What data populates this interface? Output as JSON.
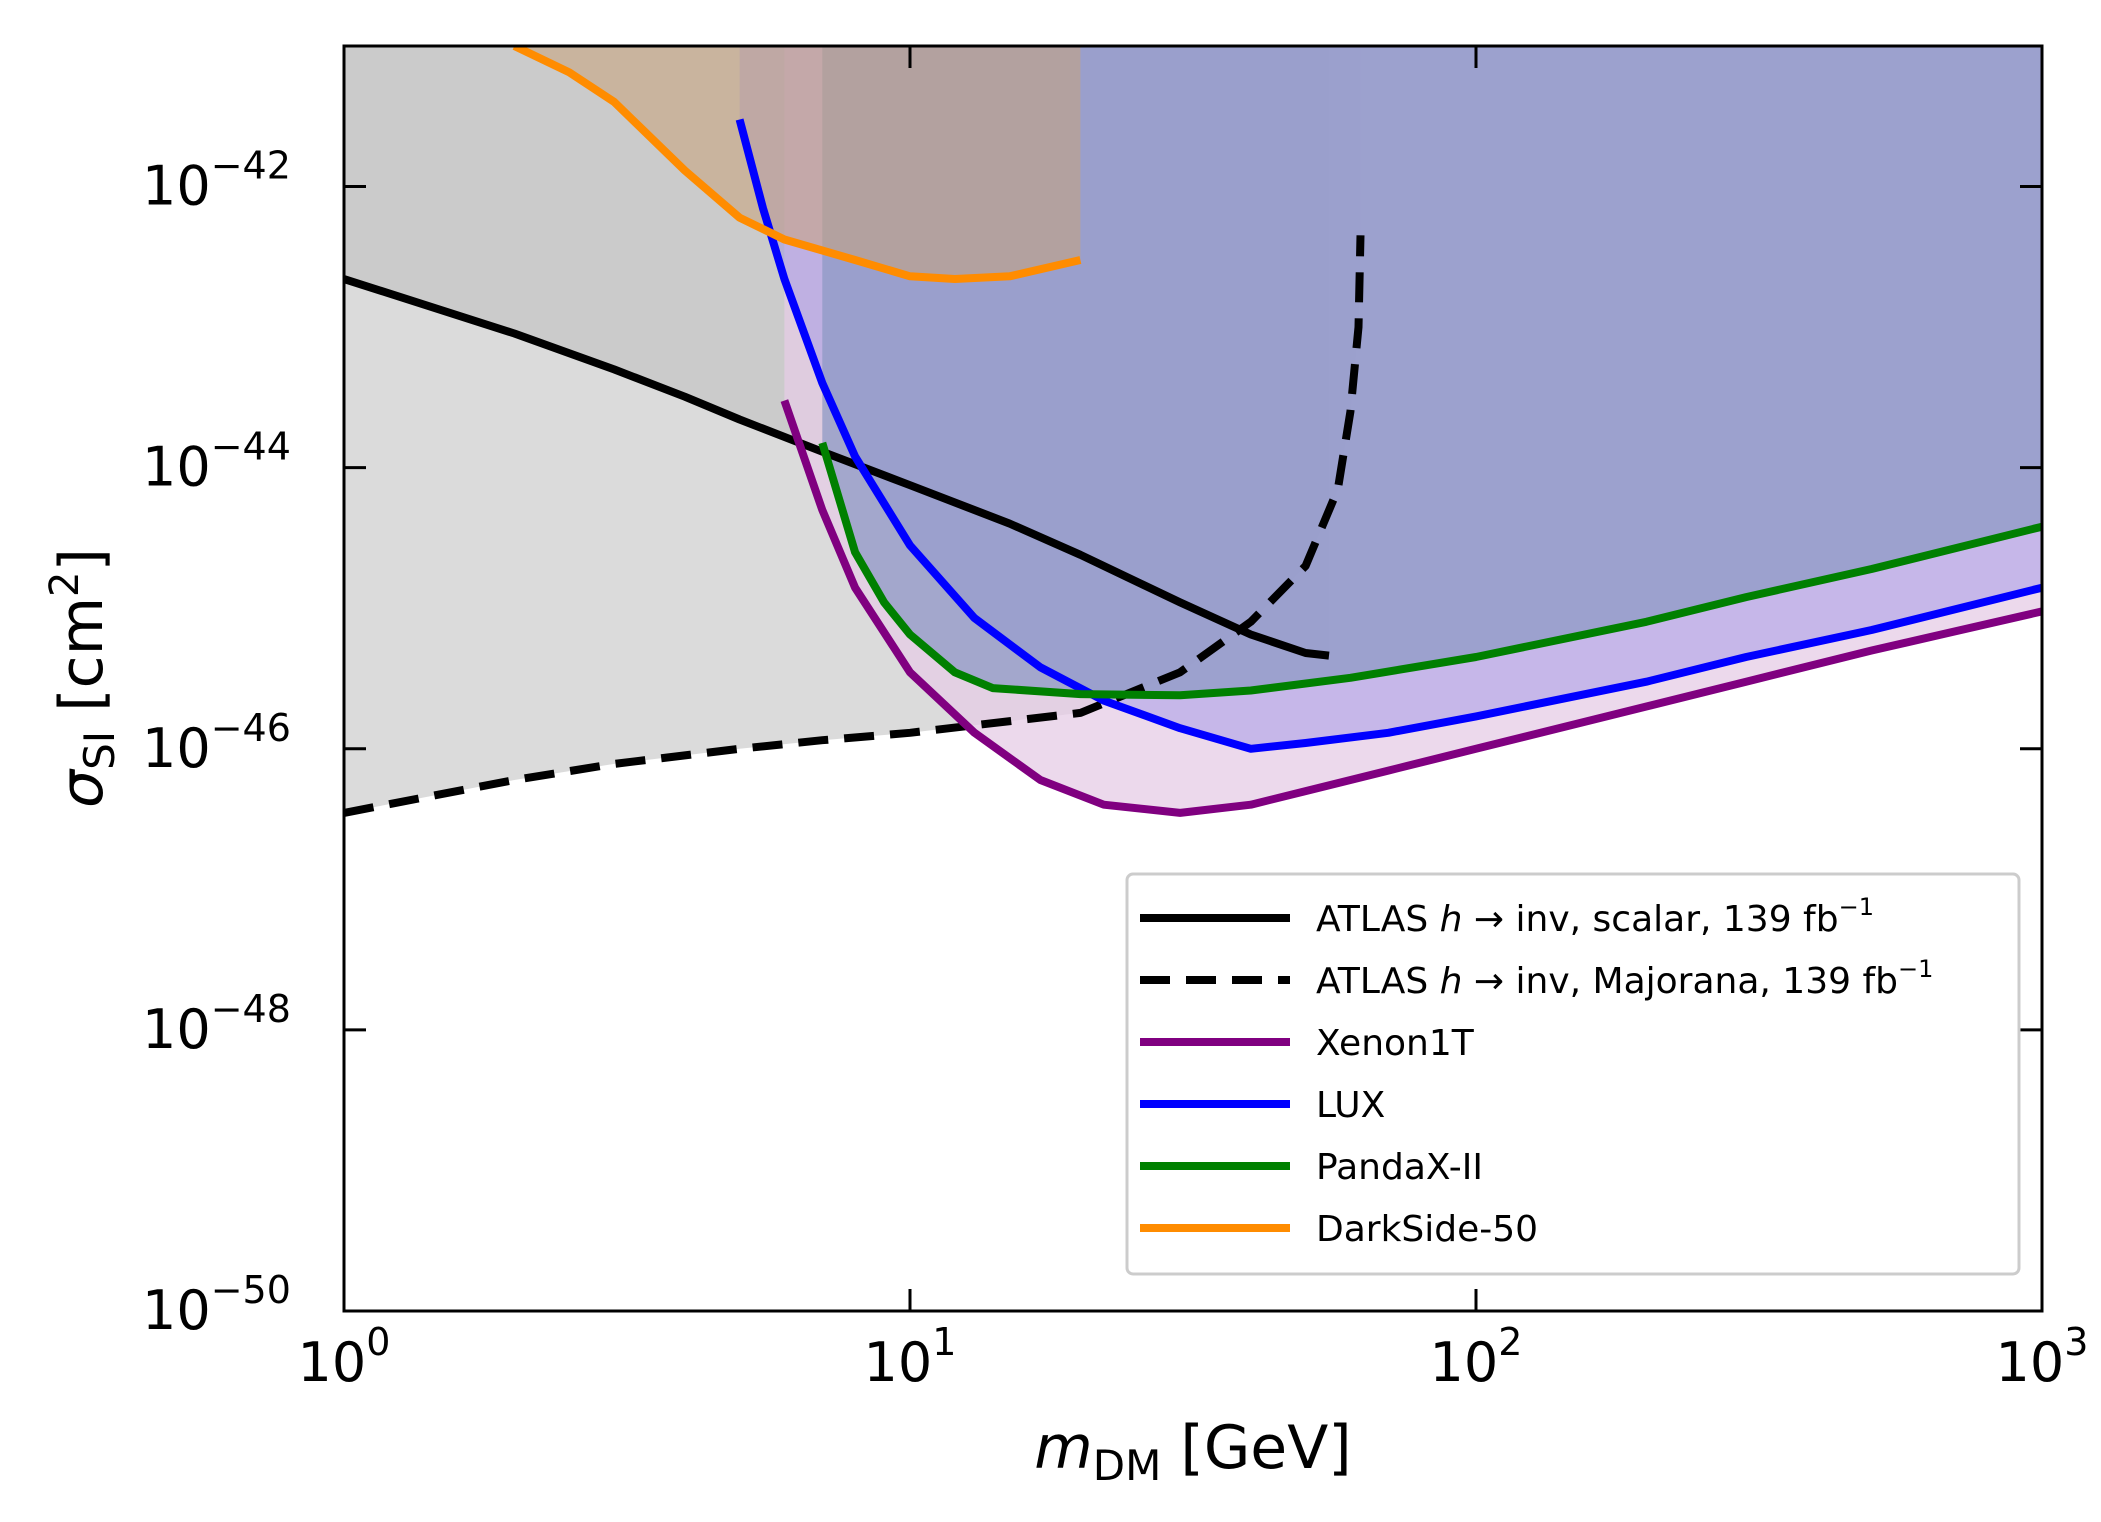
{
  "chart_data": {
    "type": "line",
    "xscale": "log",
    "yscale": "log",
    "xlim": [
      1,
      1000
    ],
    "ylim": [
      1e-50,
      1e-41
    ],
    "xlabel": {
      "symbol": "m",
      "sub": "DM",
      "unit": "[GeV]"
    },
    "ylabel": {
      "symbol": "σ",
      "sub": "SI",
      "unit_pre": "[cm",
      "unit_sup": "2",
      "unit_post": "]"
    },
    "x_ticks": [
      {
        "value": 1,
        "base": "10",
        "exp": "0"
      },
      {
        "value": 10,
        "base": "10",
        "exp": "1"
      },
      {
        "value": 100,
        "base": "10",
        "exp": "2"
      },
      {
        "value": 1000,
        "base": "10",
        "exp": "3"
      }
    ],
    "y_ticks": [
      {
        "value": 1e-42,
        "base": "10",
        "exp": "−42"
      },
      {
        "value": 1e-44,
        "base": "10",
        "exp": "−44"
      },
      {
        "value": 1e-46,
        "base": "10",
        "exp": "−46"
      },
      {
        "value": 1e-48,
        "base": "10",
        "exp": "−48"
      },
      {
        "value": 1e-50,
        "base": "10",
        "exp": "−50"
      }
    ],
    "legend_position": "lower-right",
    "series": [
      {
        "name": "ATLAS h→inv, scalar, 139 fb⁻¹",
        "legend": {
          "pre": "ATLAS ",
          "italic": "h",
          "mid": " → inv, scalar, 139 fb",
          "sup": "−1"
        },
        "color": "#000000",
        "dash": "solid",
        "fill_color": "#bdbdbd",
        "fill_opacity": 0.55,
        "x": [
          1,
          2,
          3,
          4,
          5,
          7,
          10,
          15,
          20,
          30,
          40,
          50,
          55
        ],
        "y": [
          2.2e-43,
          9e-44,
          5e-44,
          3.2e-44,
          2.2e-44,
          1.3e-44,
          7.5e-45,
          4e-45,
          2.4e-45,
          1.1e-45,
          6.5e-46,
          4.8e-46,
          4.6e-46
        ]
      },
      {
        "name": "ATLAS h→inv, Majorana, 139 fb⁻¹",
        "legend": {
          "pre": "ATLAS ",
          "italic": "h",
          "mid": " → inv, Majorana, 139 fb",
          "sup": "−1"
        },
        "color": "#000000",
        "dash": "dashed",
        "fill_color": "#bdbdbd",
        "fill_opacity": 0.55,
        "x": [
          1,
          2,
          3,
          5,
          7,
          10,
          20,
          30,
          40,
          50,
          57,
          60,
          62,
          62.5
        ],
        "y": [
          3.5e-47,
          6e-47,
          7.8e-47,
          1e-46,
          1.15e-46,
          1.3e-46,
          1.8e-46,
          3.5e-46,
          8e-46,
          2e-45,
          7e-45,
          2.5e-44,
          1e-43,
          4.5e-43
        ]
      },
      {
        "name": "Xenon1T",
        "legend": {
          "pre": "Xenon1T"
        },
        "color": "#800080",
        "dash": "solid",
        "fill_color": "#e6cce6",
        "fill_opacity": 0.75,
        "x": [
          6,
          7,
          8,
          10,
          13,
          17,
          22,
          30,
          40,
          50,
          70,
          100,
          200,
          300,
          500,
          1000
        ],
        "y": [
          3e-44,
          5e-45,
          1.4e-45,
          3.5e-46,
          1.3e-46,
          6e-47,
          4e-47,
          3.5e-47,
          4e-47,
          5e-47,
          7e-47,
          1e-46,
          2e-46,
          3e-46,
          5e-46,
          9.5e-46
        ]
      },
      {
        "name": "LUX",
        "legend": {
          "pre": "LUX"
        },
        "color": "#0000ff",
        "dash": "solid",
        "fill_color": "#9a8fe6",
        "fill_opacity": 0.45,
        "x": [
          5,
          5.5,
          6,
          7,
          8,
          10,
          13,
          17,
          22,
          30,
          40,
          50,
          70,
          100,
          200,
          300,
          500,
          1000
        ],
        "y": [
          3e-42,
          7e-43,
          2.2e-43,
          4e-44,
          1.2e-44,
          2.8e-45,
          8.5e-46,
          3.8e-46,
          2.2e-46,
          1.4e-46,
          1e-46,
          1.1e-46,
          1.3e-46,
          1.7e-46,
          3e-46,
          4.5e-46,
          7e-46,
          1.4e-45
        ]
      },
      {
        "name": "PandaX-II",
        "legend": {
          "pre": "PandaX-II"
        },
        "color": "#008000",
        "dash": "solid",
        "fill_color": "#8e9ac4",
        "fill_opacity": 0.75,
        "x": [
          7,
          8,
          9,
          10,
          12,
          14,
          20,
          30,
          40,
          60,
          100,
          200,
          300,
          500,
          1000
        ],
        "y": [
          1.5e-44,
          2.5e-45,
          1.1e-45,
          6.5e-46,
          3.5e-46,
          2.7e-46,
          2.45e-46,
          2.4e-46,
          2.6e-46,
          3.2e-46,
          4.5e-46,
          8e-46,
          1.2e-45,
          1.9e-45,
          3.8e-45
        ]
      },
      {
        "name": "DarkSide-50",
        "legend": {
          "pre": "DarkSide-50"
        },
        "color": "#ff8c00",
        "dash": "solid",
        "fill_color": "#c9a27a",
        "fill_opacity": 0.55,
        "x": [
          2,
          2.5,
          3,
          4,
          5,
          6,
          8,
          10,
          12,
          15,
          20
        ],
        "y": [
          1e-41,
          6.5e-42,
          4e-42,
          1.3e-42,
          6e-43,
          4.2e-43,
          3e-43,
          2.3e-43,
          2.2e-43,
          2.3e-43,
          3e-43
        ]
      }
    ]
  }
}
